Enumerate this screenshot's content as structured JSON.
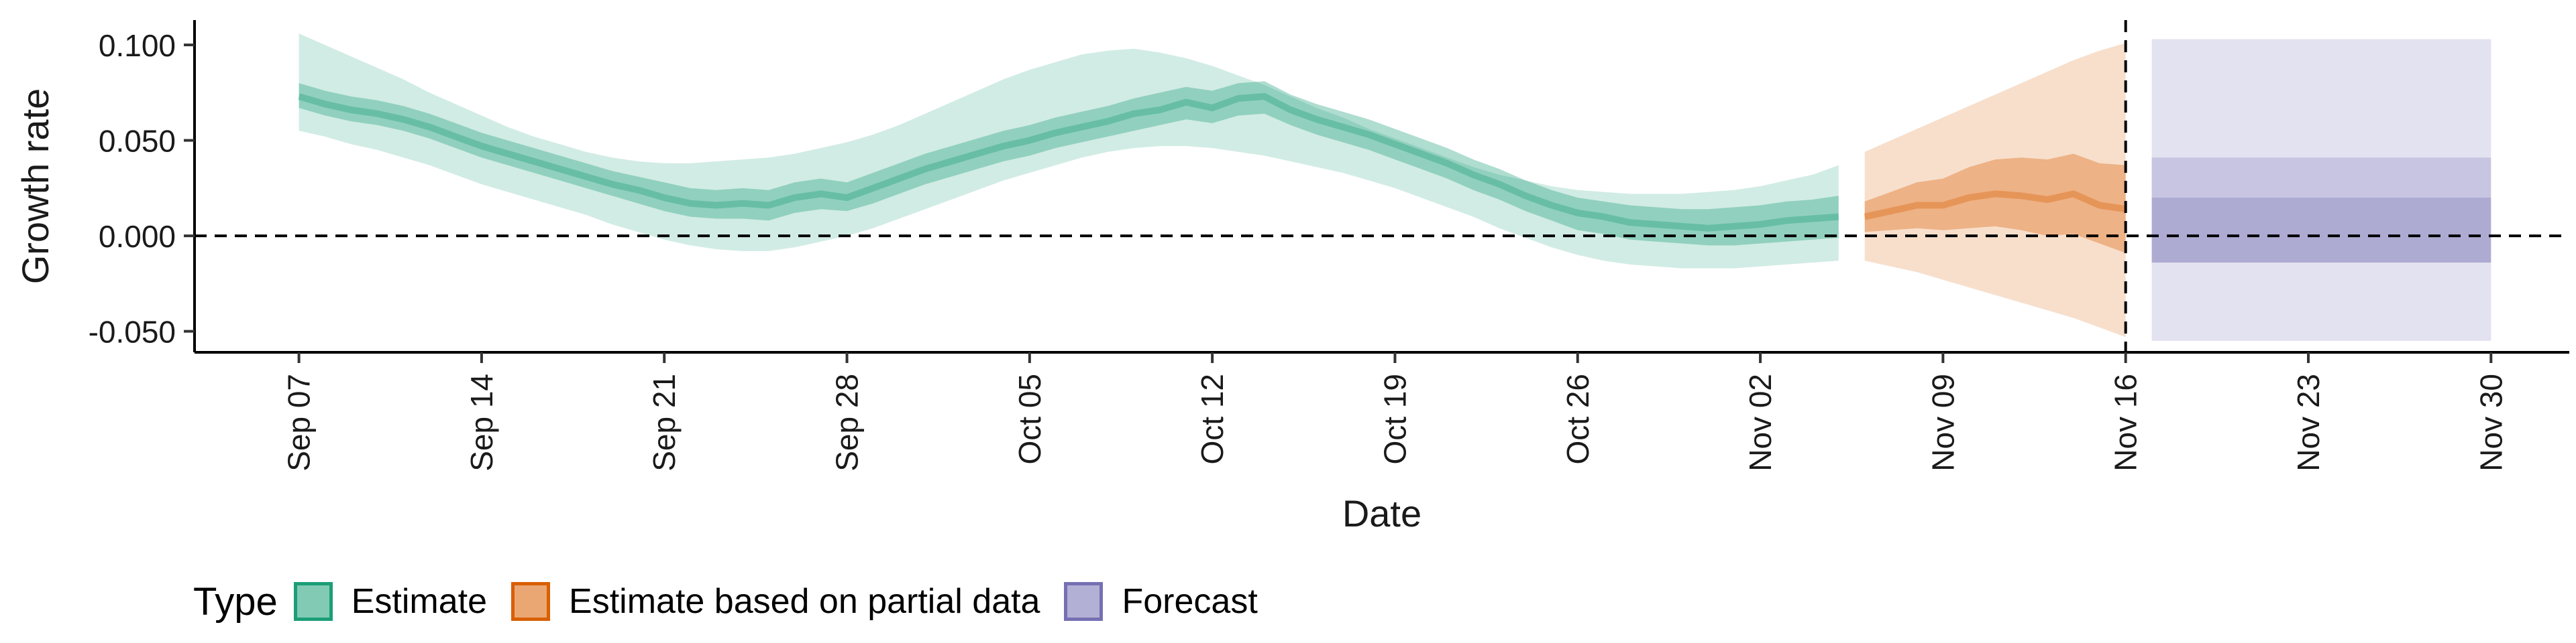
{
  "chart_data": {
    "type": "area",
    "xlabel": "Date",
    "ylabel": "Growth rate",
    "x_ticks": [
      "Sep 07",
      "Sep 14",
      "Sep 21",
      "Sep 28",
      "Oct 05",
      "Oct 12",
      "Oct 19",
      "Oct 26",
      "Nov 02",
      "Nov 09",
      "Nov 16",
      "Nov 23",
      "Nov 30"
    ],
    "y_ticks": [
      "0.100",
      "0.050",
      "0.000",
      "-0.050"
    ],
    "ylim": [
      -0.061,
      0.113
    ],
    "xlim": [
      "2020-09-03",
      "2020-12-03"
    ],
    "x_start": "2020-09-07",
    "reference_lines": {
      "horizontal_y": 0,
      "vertical_x": "2020-11-16"
    },
    "legend": {
      "title": "Type",
      "position": "bottom-left",
      "items": [
        {
          "label": "Estimate",
          "fill": "#1b9e77",
          "border": "#1b9e77"
        },
        {
          "label": "Estimate based on partial data",
          "fill": "#d95f02",
          "border": "#d95f02"
        },
        {
          "label": "Forecast",
          "fill": "#7570b3",
          "border": "#7570b3"
        }
      ]
    },
    "series": [
      {
        "name": "Estimate",
        "color": "#1b9e77",
        "x": [
          "2020-09-07",
          "2020-09-08",
          "2020-09-09",
          "2020-09-10",
          "2020-09-11",
          "2020-09-12",
          "2020-09-13",
          "2020-09-14",
          "2020-09-15",
          "2020-09-16",
          "2020-09-17",
          "2020-09-18",
          "2020-09-19",
          "2020-09-20",
          "2020-09-21",
          "2020-09-22",
          "2020-09-23",
          "2020-09-24",
          "2020-09-25",
          "2020-09-26",
          "2020-09-27",
          "2020-09-28",
          "2020-09-29",
          "2020-09-30",
          "2020-10-01",
          "2020-10-02",
          "2020-10-03",
          "2020-10-04",
          "2020-10-05",
          "2020-10-06",
          "2020-10-07",
          "2020-10-08",
          "2020-10-09",
          "2020-10-10",
          "2020-10-11",
          "2020-10-12",
          "2020-10-13",
          "2020-10-14",
          "2020-10-15",
          "2020-10-16",
          "2020-10-17",
          "2020-10-18",
          "2020-10-19",
          "2020-10-20",
          "2020-10-21",
          "2020-10-22",
          "2020-10-23",
          "2020-10-24",
          "2020-10-25",
          "2020-10-26",
          "2020-10-27",
          "2020-10-28",
          "2020-10-29",
          "2020-10-30",
          "2020-10-31",
          "2020-11-01",
          "2020-11-02",
          "2020-11-03",
          "2020-11-04",
          "2020-11-05"
        ],
        "median": [
          0.073,
          0.069,
          0.066,
          0.064,
          0.061,
          0.057,
          0.052,
          0.047,
          0.043,
          0.039,
          0.035,
          0.031,
          0.027,
          0.024,
          0.02,
          0.017,
          0.016,
          0.017,
          0.016,
          0.02,
          0.022,
          0.02,
          0.025,
          0.03,
          0.035,
          0.039,
          0.043,
          0.047,
          0.05,
          0.054,
          0.057,
          0.06,
          0.064,
          0.066,
          0.07,
          0.067,
          0.072,
          0.073,
          0.066,
          0.061,
          0.057,
          0.053,
          0.048,
          0.043,
          0.038,
          0.032,
          0.027,
          0.021,
          0.016,
          0.012,
          0.01,
          0.007,
          0.006,
          0.005,
          0.004,
          0.005,
          0.006,
          0.008,
          0.009,
          0.01
        ],
        "lower50": [
          0.067,
          0.063,
          0.06,
          0.058,
          0.055,
          0.051,
          0.046,
          0.041,
          0.037,
          0.033,
          0.029,
          0.025,
          0.021,
          0.017,
          0.013,
          0.01,
          0.009,
          0.009,
          0.008,
          0.012,
          0.014,
          0.013,
          0.017,
          0.022,
          0.027,
          0.031,
          0.035,
          0.039,
          0.042,
          0.046,
          0.049,
          0.052,
          0.055,
          0.058,
          0.061,
          0.059,
          0.063,
          0.064,
          0.058,
          0.053,
          0.049,
          0.045,
          0.04,
          0.035,
          0.03,
          0.024,
          0.019,
          0.013,
          0.008,
          0.003,
          0.001,
          -0.002,
          -0.003,
          -0.004,
          -0.005,
          -0.005,
          -0.004,
          -0.003,
          -0.002,
          -0.001
        ],
        "upper50": [
          0.08,
          0.076,
          0.073,
          0.071,
          0.068,
          0.064,
          0.059,
          0.054,
          0.05,
          0.046,
          0.042,
          0.038,
          0.034,
          0.031,
          0.028,
          0.025,
          0.024,
          0.025,
          0.024,
          0.028,
          0.03,
          0.028,
          0.033,
          0.038,
          0.043,
          0.047,
          0.051,
          0.055,
          0.058,
          0.062,
          0.065,
          0.068,
          0.072,
          0.075,
          0.078,
          0.076,
          0.08,
          0.081,
          0.074,
          0.069,
          0.065,
          0.061,
          0.056,
          0.051,
          0.046,
          0.04,
          0.035,
          0.029,
          0.024,
          0.02,
          0.018,
          0.016,
          0.015,
          0.014,
          0.014,
          0.015,
          0.016,
          0.018,
          0.019,
          0.021
        ],
        "lower90": [
          0.055,
          0.052,
          0.048,
          0.045,
          0.041,
          0.037,
          0.032,
          0.027,
          0.023,
          0.019,
          0.015,
          0.011,
          0.006,
          0.002,
          -0.002,
          -0.005,
          -0.007,
          -0.008,
          -0.008,
          -0.006,
          -0.003,
          0.0,
          0.004,
          0.009,
          0.014,
          0.019,
          0.024,
          0.029,
          0.033,
          0.037,
          0.041,
          0.044,
          0.046,
          0.047,
          0.047,
          0.046,
          0.044,
          0.042,
          0.039,
          0.036,
          0.033,
          0.029,
          0.025,
          0.02,
          0.015,
          0.01,
          0.004,
          -0.001,
          -0.006,
          -0.01,
          -0.013,
          -0.015,
          -0.016,
          -0.017,
          -0.017,
          -0.017,
          -0.016,
          -0.015,
          -0.014,
          -0.013
        ],
        "upper90": [
          0.106,
          0.1,
          0.094,
          0.088,
          0.082,
          0.075,
          0.069,
          0.063,
          0.057,
          0.052,
          0.048,
          0.044,
          0.041,
          0.039,
          0.038,
          0.038,
          0.039,
          0.04,
          0.041,
          0.043,
          0.046,
          0.049,
          0.053,
          0.058,
          0.064,
          0.07,
          0.076,
          0.082,
          0.087,
          0.091,
          0.095,
          0.097,
          0.098,
          0.096,
          0.093,
          0.089,
          0.084,
          0.079,
          0.073,
          0.067,
          0.062,
          0.056,
          0.051,
          0.046,
          0.041,
          0.036,
          0.032,
          0.029,
          0.026,
          0.024,
          0.023,
          0.022,
          0.022,
          0.022,
          0.023,
          0.024,
          0.026,
          0.029,
          0.032,
          0.037
        ]
      },
      {
        "name": "Estimate based on partial data",
        "color": "#d95f02",
        "x": [
          "2020-11-06",
          "2020-11-07",
          "2020-11-08",
          "2020-11-09",
          "2020-11-10",
          "2020-11-11",
          "2020-11-12",
          "2020-11-13",
          "2020-11-14",
          "2020-11-15",
          "2020-11-16"
        ],
        "median": [
          0.01,
          0.013,
          0.016,
          0.016,
          0.02,
          0.022,
          0.021,
          0.019,
          0.022,
          0.016,
          0.014
        ],
        "lower50": [
          0.002,
          0.003,
          0.004,
          0.003,
          0.004,
          0.005,
          0.003,
          0.0,
          0.001,
          -0.004,
          -0.009
        ],
        "upper50": [
          0.018,
          0.023,
          0.028,
          0.03,
          0.036,
          0.04,
          0.041,
          0.04,
          0.043,
          0.038,
          0.037
        ],
        "lower90": [
          -0.013,
          -0.016,
          -0.019,
          -0.023,
          -0.027,
          -0.031,
          -0.035,
          -0.039,
          -0.043,
          -0.048,
          -0.053
        ],
        "upper90": [
          0.044,
          0.05,
          0.056,
          0.062,
          0.068,
          0.074,
          0.08,
          0.086,
          0.092,
          0.097,
          0.101
        ]
      },
      {
        "name": "Forecast",
        "color": "#7570b3",
        "x": [
          "2020-11-17",
          "2020-11-30"
        ],
        "median": [
          0.003,
          0.003
        ],
        "lower30": [
          -0.014,
          -0.014
        ],
        "upper30": [
          0.02,
          0.02
        ],
        "lower60": [
          -0.014,
          -0.014
        ],
        "upper60": [
          0.041,
          0.041
        ],
        "lower90": [
          -0.055,
          -0.055
        ],
        "upper90": [
          0.103,
          0.103
        ]
      }
    ]
  }
}
